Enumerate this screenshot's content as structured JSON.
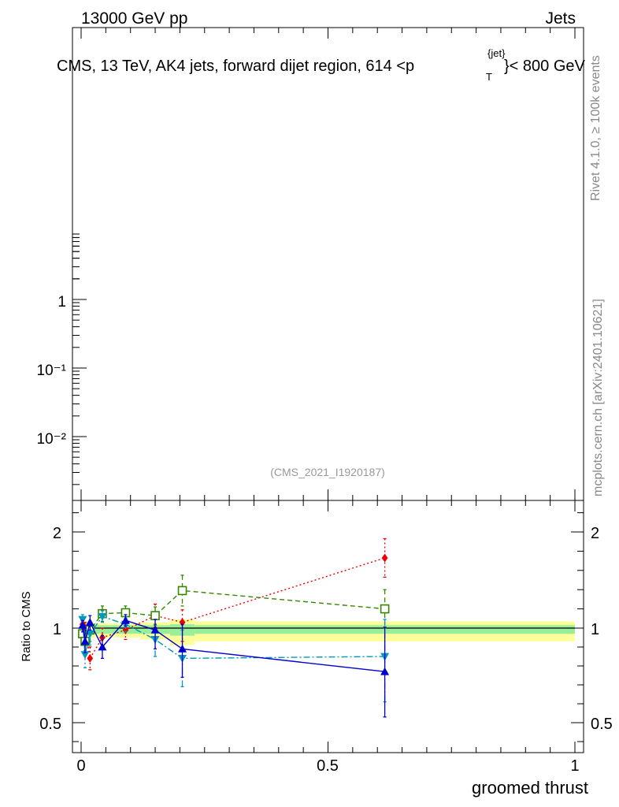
{
  "header": {
    "energy_label": "13000 GeV pp",
    "category_label": "Jets",
    "title_prefix": "CMS, 13 TeV, AK4 jets, forward dijet region, 614 <p",
    "title_sup": "{jet}",
    "title_sub": "T",
    "title_suffix": "}< 800 GeV",
    "analysis_id": "(CMS_2021_I1920187)"
  },
  "side_text": {
    "rivet": "Rivet 4.1.0, ≥ 100k events",
    "mcplots": "mcplots.cern.ch [arXiv:2401.10621]"
  },
  "chart_data": {
    "type": "line",
    "main_panel": {
      "yscale": "log",
      "ytick_labels": [
        "1",
        "10⁻¹",
        "10⁻²"
      ],
      "ytick_values": [
        1,
        0.1,
        0.01
      ]
    },
    "ratio_panel": {
      "ylabel": "Ratio to CMS",
      "ylim": [
        0.35,
        2.3
      ],
      "ytick_labels": [
        "0.5",
        "1",
        "2"
      ],
      "ytick_values": [
        0.5,
        1,
        2
      ]
    },
    "xlabel": "groomed thrust",
    "xlim": [
      -0.02,
      1.02
    ],
    "xtick_labels": [
      "0",
      "0.5",
      "1"
    ],
    "xtick_values": [
      0,
      0.5,
      1
    ],
    "reference_band": {
      "edges": [
        0,
        0.01,
        0.02,
        0.03,
        0.06,
        0.12,
        0.18,
        0.23,
        1.0
      ],
      "inner": [
        0.04,
        0.04,
        0.03,
        0.03,
        0.03,
        0.03,
        0.04,
        0.03
      ],
      "outer": [
        0.06,
        0.07,
        0.05,
        0.05,
        0.05,
        0.06,
        0.09,
        0.07
      ]
    },
    "series": [
      {
        "name": "MC red (diamond, dotted)",
        "color": "#ee0000",
        "marker": "diamond",
        "dash": "2,3",
        "x": [
          0.003,
          0.008,
          0.018,
          0.043,
          0.09,
          0.15,
          0.205,
          0.615
        ],
        "y": [
          1.04,
          1.0,
          0.84,
          0.95,
          0.99,
          1.13,
          1.06,
          1.73
        ],
        "err": [
          0.03,
          0.06,
          0.06,
          0.05,
          0.05,
          0.12,
          0.13,
          0.2
        ]
      },
      {
        "name": "MC green (open square, dashed)",
        "color": "#338800",
        "marker": "square",
        "dash": "6,4",
        "x": [
          0.003,
          0.008,
          0.018,
          0.043,
          0.09,
          0.15,
          0.205,
          0.615
        ],
        "y": [
          0.97,
          0.93,
          0.99,
          1.15,
          1.16,
          1.13,
          1.39,
          1.2
        ],
        "err": [
          0.04,
          0.05,
          0.06,
          0.08,
          0.07,
          0.09,
          0.16,
          0.2
        ]
      },
      {
        "name": "MC cyan (down triangle, dash-dot)",
        "color": "#0099bb",
        "marker": "triangle-down",
        "dash": "8,3,2,3",
        "x": [
          0.003,
          0.008,
          0.018,
          0.043,
          0.09,
          0.15,
          0.205,
          0.615
        ],
        "y": [
          1.09,
          0.86,
          0.97,
          1.12,
          1.04,
          0.94,
          0.84,
          0.85
        ],
        "err": [
          0.05,
          0.07,
          0.06,
          0.06,
          0.06,
          0.09,
          0.15,
          0.24
        ]
      },
      {
        "name": "MC blue (up triangle, solid)",
        "color": "#0000cc",
        "marker": "triangle-up",
        "dash": "",
        "x": [
          0.003,
          0.008,
          0.018,
          0.043,
          0.09,
          0.15,
          0.205,
          0.615
        ],
        "y": [
          1.03,
          0.93,
          1.06,
          0.9,
          1.08,
          0.99,
          0.89,
          0.77
        ],
        "err": [
          0.05,
          0.06,
          0.07,
          0.06,
          0.06,
          0.1,
          0.15,
          0.24
        ]
      }
    ]
  }
}
